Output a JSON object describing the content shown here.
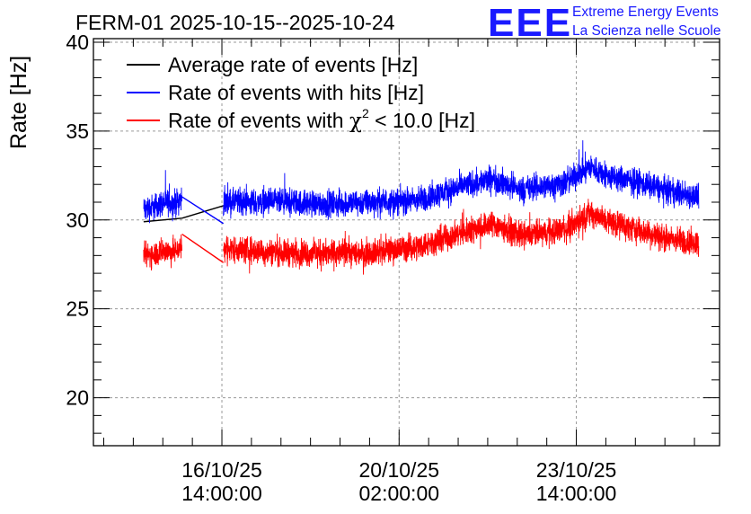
{
  "chart_data": {
    "type": "line",
    "title": "FERM-01 2025-10-15--2025-10-24",
    "xlabel": "",
    "ylabel": "Rate [Hz]",
    "ylim": [
      17.3,
      40.2
    ],
    "yticks": [
      20,
      25,
      30,
      35,
      40
    ],
    "xlim_hours": [
      0,
      212
    ],
    "xticks": [
      {
        "hour": 43.5,
        "date": "16/10/25",
        "time": "14:00:00"
      },
      {
        "hour": 103.5,
        "date": "20/10/25",
        "time": "02:00:00"
      },
      {
        "hour": 163.5,
        "date": "23/10/25",
        "time": "14:00:00"
      }
    ],
    "grid": true,
    "legend_position": "top-left",
    "series": [
      {
        "name": "Average rate of events [Hz]",
        "color": "#000000",
        "segments": [
          {
            "x": [
              17,
              30
            ],
            "y": [
              29.9,
              30.1
            ]
          },
          {
            "x": [
              30,
              44
            ],
            "y": [
              30.1,
              30.8
            ]
          }
        ]
      },
      {
        "name": "Rate of events with hits [Hz]",
        "color": "#0000ff",
        "noise_amplitude": 1.1,
        "segments": [
          {
            "x": [
              17,
              20,
              24,
              27,
              30
            ],
            "y": [
              30.6,
              30.7,
              31.0,
              30.9,
              31.2
            ]
          },
          {
            "x": [
              30,
              44
            ],
            "y": [
              31.3,
              29.8
            ]
          },
          {
            "x": [
              44,
              60,
              80,
              95,
              110,
              125,
              135,
              145,
              160,
              168,
              175,
              185,
              195,
              205
            ],
            "y": [
              31.0,
              31.0,
              30.9,
              31.0,
              31.1,
              31.9,
              32.3,
              31.7,
              32.1,
              33.0,
              32.4,
              32.1,
              31.6,
              31.3
            ]
          }
        ]
      },
      {
        "name": "Rate of events with χ² < 10.0 [Hz]",
        "legend_prefix": "Rate of events with ",
        "legend_symbol": "χ",
        "legend_superscript": "2",
        "legend_suffix": " < 10.0 [Hz]",
        "color": "#ff0000",
        "noise_amplitude": 1.1,
        "segments": [
          {
            "x": [
              17,
              20,
              24,
              27,
              30
            ],
            "y": [
              28.0,
              28.1,
              28.3,
              28.2,
              28.5
            ]
          },
          {
            "x": [
              30,
              44
            ],
            "y": [
              29.2,
              27.6
            ]
          },
          {
            "x": [
              44,
              60,
              80,
              95,
              110,
              125,
              135,
              145,
              160,
              168,
              175,
              185,
              195,
              205
            ],
            "y": [
              28.4,
              28.2,
              28.1,
              28.2,
              28.5,
              29.3,
              29.8,
              29.1,
              29.5,
              30.4,
              29.9,
              29.4,
              28.9,
              28.7
            ]
          }
        ]
      }
    ]
  },
  "logo": {
    "mark": "EEE",
    "line1": "Extreme Energy Events",
    "line2": "La Scienza nelle Scuole",
    "color": "#1a1aff"
  }
}
